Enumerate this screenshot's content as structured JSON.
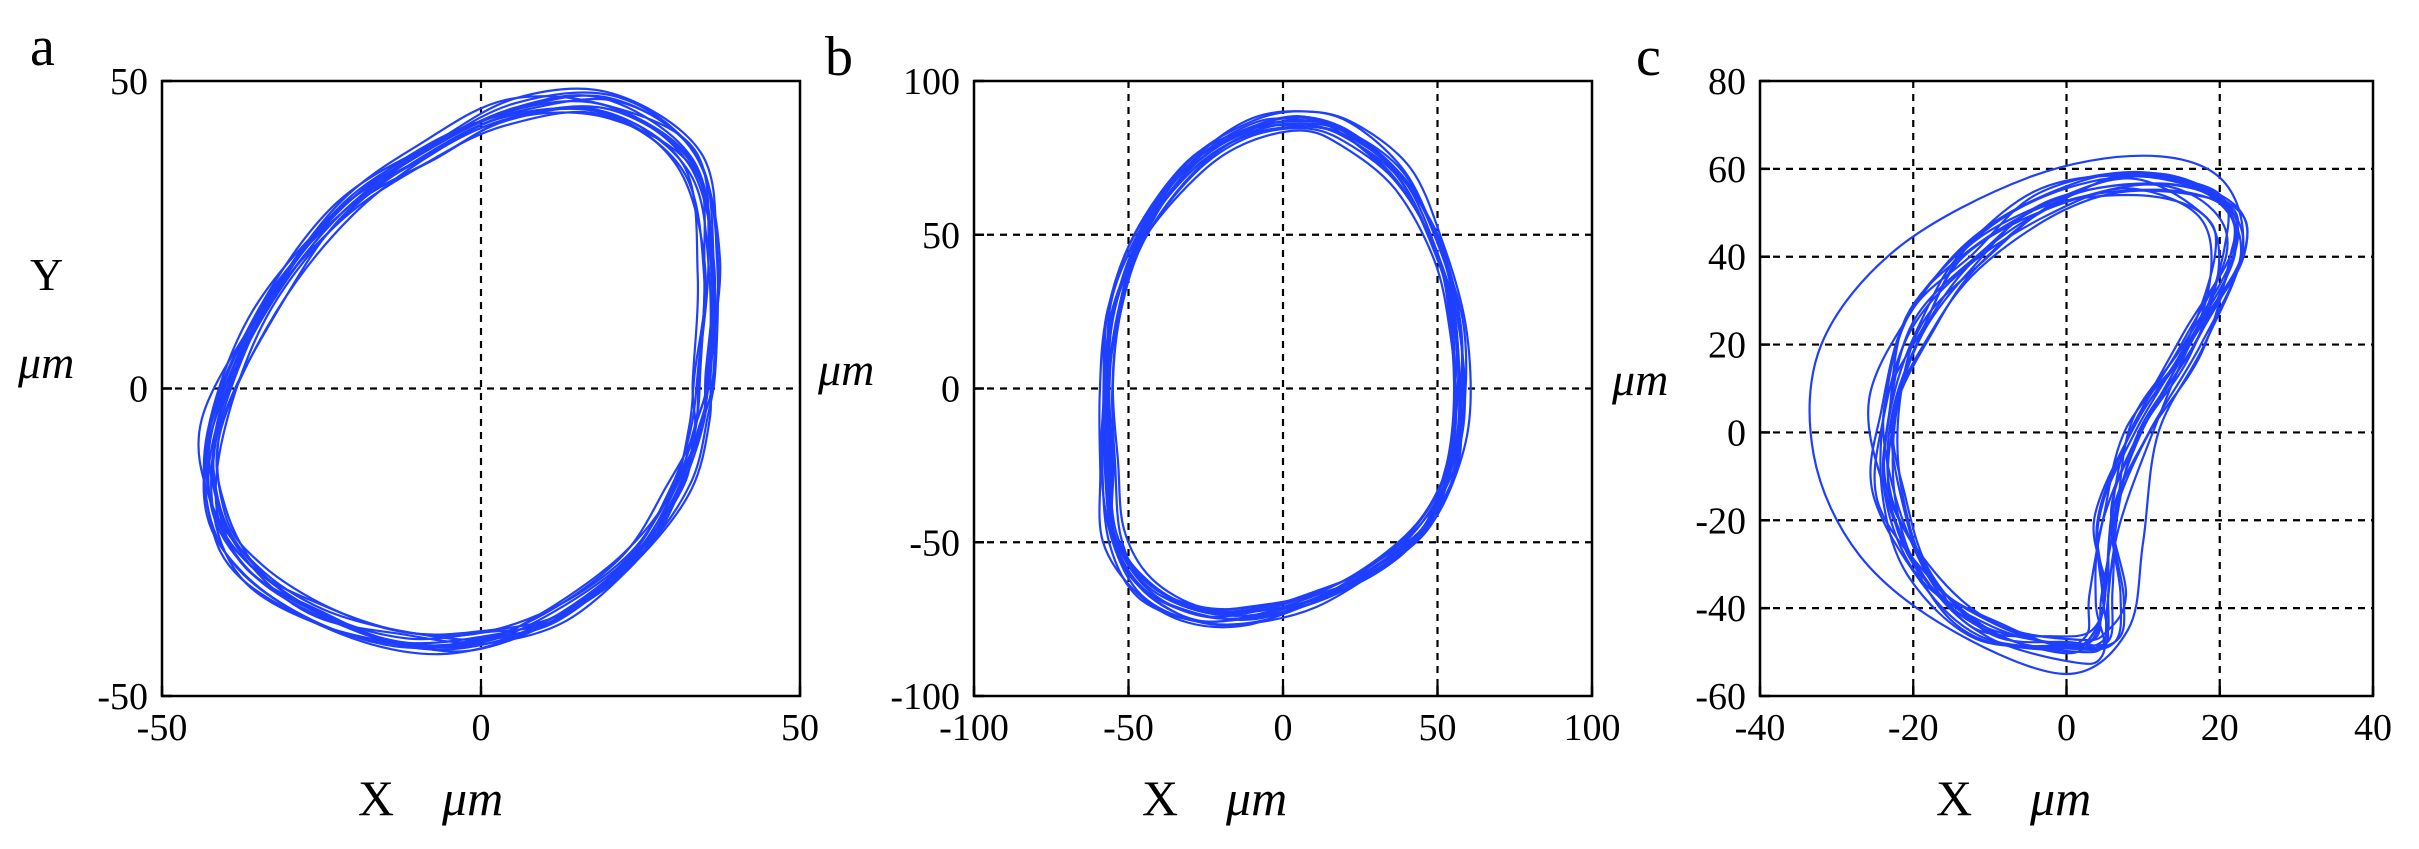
{
  "chart_data": [
    {
      "type": "line",
      "id": "a",
      "panel_label": "a",
      "xlabel": "X",
      "xunit": "μm",
      "ylabel": "Y",
      "yunit": "μm",
      "xlim": [
        -50,
        50
      ],
      "ylim": [
        -50,
        50
      ],
      "xticks": [
        -50,
        0,
        50
      ],
      "yticks": [
        -50,
        0,
        50
      ],
      "grid": "dashed at 0",
      "line_color": "#1f3fff",
      "orbit": {
        "points": [
          [
            35,
            2
          ],
          [
            36,
            20
          ],
          [
            33,
            37
          ],
          [
            20,
            46
          ],
          [
            5,
            45
          ],
          [
            -8,
            39
          ],
          [
            -22,
            29
          ],
          [
            -34,
            13
          ],
          [
            -42,
            -6
          ],
          [
            -42,
            -20
          ],
          [
            -36,
            -30
          ],
          [
            -25,
            -37
          ],
          [
            -12,
            -41
          ],
          [
            0,
            -41
          ],
          [
            12,
            -37
          ],
          [
            24,
            -27
          ],
          [
            31,
            -16
          ],
          [
            34,
            -6
          ]
        ],
        "loops": 14,
        "jitter": [
          2.2,
          2.2
        ]
      }
    },
    {
      "type": "line",
      "id": "b",
      "panel_label": "b",
      "xlabel": "X",
      "xunit": "μm",
      "ylabel": "",
      "yunit": "μm",
      "xlim": [
        -100,
        100
      ],
      "ylim": [
        -100,
        100
      ],
      "xticks": [
        -100,
        -50,
        0,
        50,
        100
      ],
      "yticks": [
        -100,
        -50,
        0,
        50,
        100
      ],
      "grid": "dashed at every tick",
      "line_color": "#1f3fff",
      "orbit": {
        "points": [
          [
            57,
            -5
          ],
          [
            56,
            20
          ],
          [
            50,
            45
          ],
          [
            38,
            68
          ],
          [
            20,
            83
          ],
          [
            5,
            87
          ],
          [
            -12,
            84
          ],
          [
            -30,
            72
          ],
          [
            -46,
            50
          ],
          [
            -55,
            25
          ],
          [
            -57,
            0
          ],
          [
            -57,
            -25
          ],
          [
            -55,
            -48
          ],
          [
            -45,
            -65
          ],
          [
            -28,
            -74
          ],
          [
            -10,
            -74
          ],
          [
            10,
            -68
          ],
          [
            30,
            -58
          ],
          [
            45,
            -45
          ],
          [
            54,
            -25
          ]
        ],
        "loops": 14,
        "jitter": [
          3.0,
          3.0
        ]
      }
    },
    {
      "type": "line",
      "id": "c",
      "panel_label": "c",
      "xlabel": "X",
      "xunit": "μm",
      "ylabel": "",
      "yunit": "μm",
      "xlim": [
        -40,
        40
      ],
      "ylim": [
        -60,
        80
      ],
      "xticks": [
        -40,
        -20,
        0,
        20,
        40
      ],
      "yticks": [
        -60,
        -40,
        -20,
        0,
        20,
        40,
        60,
        80
      ],
      "grid": "dashed at every tick",
      "line_color": "#1f3fff",
      "orbit": {
        "points": [
          [
            0,
            -50
          ],
          [
            -10,
            -46
          ],
          [
            -18,
            -34
          ],
          [
            -23,
            -15
          ],
          [
            -23,
            5
          ],
          [
            -19,
            25
          ],
          [
            -12,
            40
          ],
          [
            -2,
            52
          ],
          [
            10,
            57
          ],
          [
            20,
            52
          ],
          [
            22,
            40
          ],
          [
            17,
            20
          ],
          [
            10,
            0
          ],
          [
            6,
            -20
          ],
          [
            6,
            -38
          ],
          [
            5,
            -48
          ]
        ],
        "loops": 14,
        "jitter": [
          3.2,
          3.5
        ],
        "outer_loop": [
          [
            0,
            -55
          ],
          [
            -15,
            -45
          ],
          [
            -27,
            -28
          ],
          [
            -33,
            -5
          ],
          [
            -32,
            20
          ],
          [
            -22,
            42
          ],
          [
            -5,
            58
          ],
          [
            10,
            63
          ],
          [
            20,
            58
          ],
          [
            23,
            42
          ],
          [
            18,
            20
          ],
          [
            12,
            0
          ],
          [
            10,
            -25
          ],
          [
            8,
            -45
          ]
        ]
      }
    }
  ]
}
